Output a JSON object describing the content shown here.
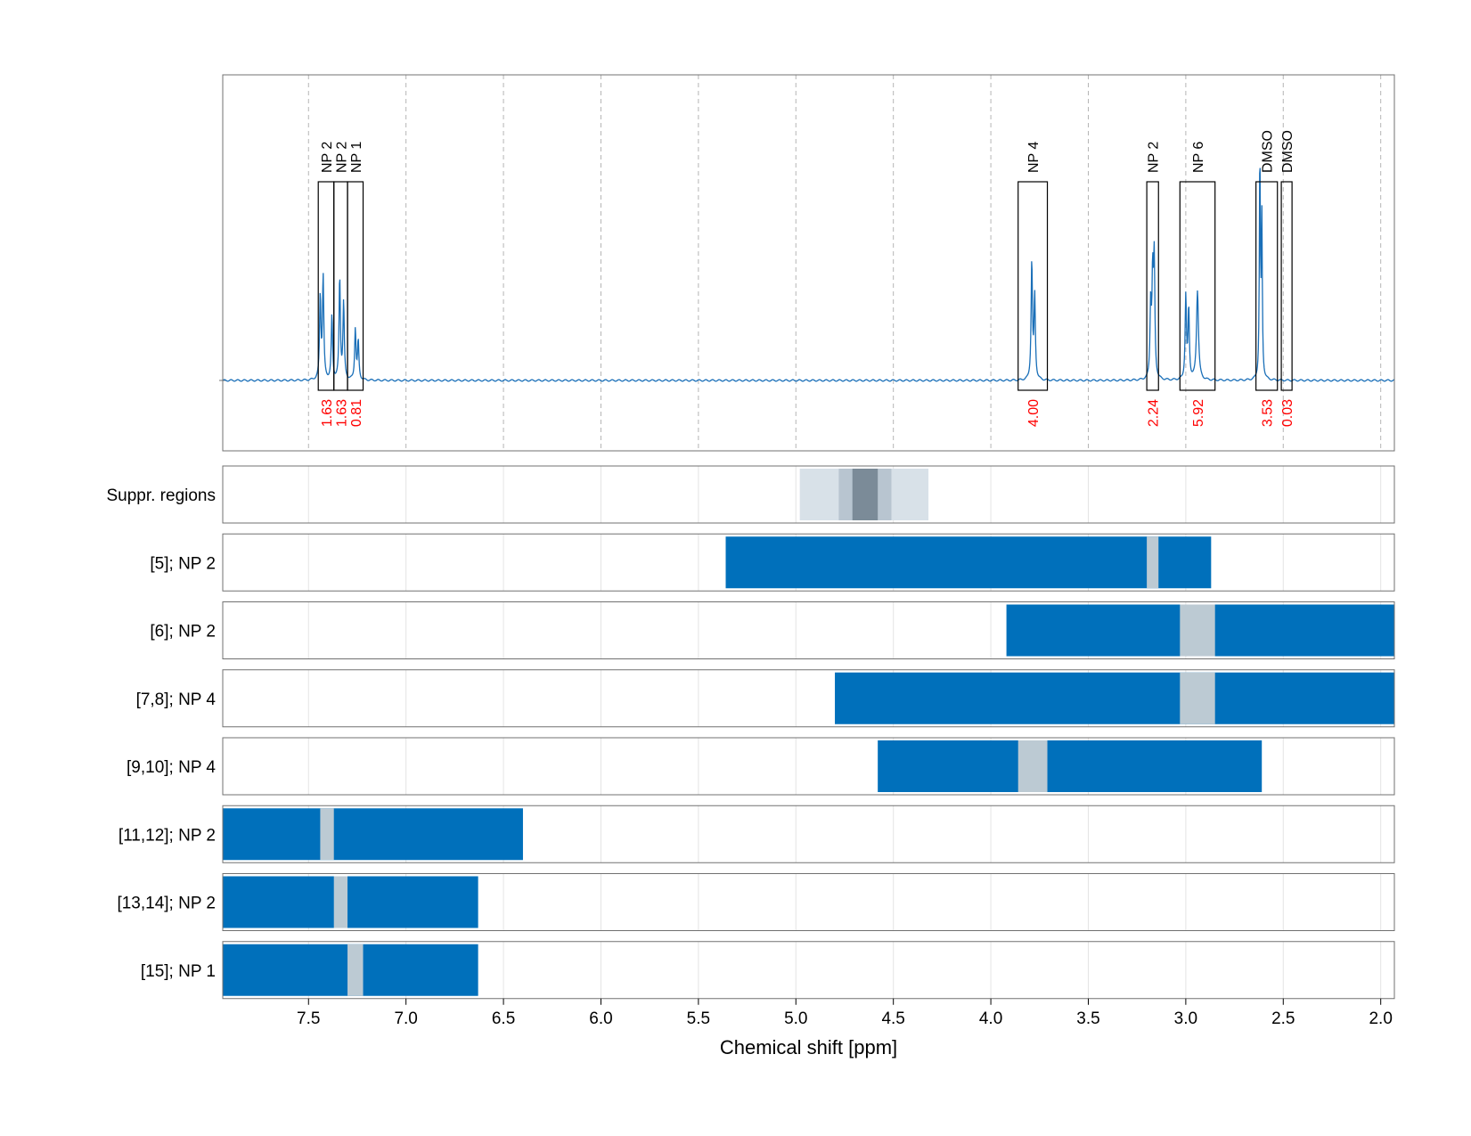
{
  "chart_data": {
    "type": "nmr-spectrum-with-integration-ranges",
    "xlabel": "Chemical shift [ppm]",
    "xlim": [
      7.94,
      1.93
    ],
    "x_ticks": [
      "7.5",
      "7.0",
      "6.5",
      "6.0",
      "5.5",
      "5.0",
      "4.5",
      "4.0",
      "3.5",
      "3.0",
      "2.5",
      "2.0"
    ],
    "x_tick_values": [
      7.5,
      7.0,
      6.5,
      6.0,
      5.5,
      5.0,
      4.5,
      4.0,
      3.5,
      3.0,
      2.5,
      2.0
    ],
    "grid": true,
    "spectrum_color": "#1a6fb8",
    "integral_label_color": "#ff0000",
    "peaks": [
      {
        "center": 7.44,
        "height": 0.26,
        "width": 0.004
      },
      {
        "center": 7.425,
        "height": 0.32,
        "width": 0.004
      },
      {
        "center": 7.38,
        "height": 0.2,
        "width": 0.004
      },
      {
        "center": 7.34,
        "height": 0.32,
        "width": 0.004
      },
      {
        "center": 7.32,
        "height": 0.24,
        "width": 0.004
      },
      {
        "center": 7.26,
        "height": 0.16,
        "width": 0.004
      },
      {
        "center": 7.245,
        "height": 0.12,
        "width": 0.004
      },
      {
        "center": 3.79,
        "height": 0.37,
        "width": 0.004
      },
      {
        "center": 3.775,
        "height": 0.26,
        "width": 0.004
      },
      {
        "center": 3.18,
        "height": 0.23,
        "width": 0.004
      },
      {
        "center": 3.17,
        "height": 0.3,
        "width": 0.004
      },
      {
        "center": 3.162,
        "height": 0.36,
        "width": 0.004
      },
      {
        "center": 3.0,
        "height": 0.26,
        "width": 0.004
      },
      {
        "center": 2.985,
        "height": 0.22,
        "width": 0.004
      },
      {
        "center": 2.94,
        "height": 0.28,
        "width": 0.006
      },
      {
        "center": 2.62,
        "height": 0.7,
        "width": 0.003
      },
      {
        "center": 2.61,
        "height": 0.5,
        "width": 0.003
      }
    ],
    "integration_regions": [
      {
        "label": "NP 2",
        "from": 7.45,
        "to": 7.37,
        "integral": "1.63"
      },
      {
        "label": "NP 2",
        "from": 7.37,
        "to": 7.3,
        "integral": "1.63"
      },
      {
        "label": "NP 1",
        "from": 7.3,
        "to": 7.22,
        "integral": "0.81"
      },
      {
        "label": "NP 4",
        "from": 3.86,
        "to": 3.71,
        "integral": "4.00"
      },
      {
        "label": "NP 2",
        "from": 3.2,
        "to": 3.14,
        "integral": "2.24"
      },
      {
        "label": "NP 6",
        "from": 3.03,
        "to": 2.85,
        "integral": "5.92"
      },
      {
        "label": "DMSO",
        "from": 2.64,
        "to": 2.53,
        "integral": "3.53"
      },
      {
        "label": "DMSO",
        "from": 2.51,
        "to": 2.455,
        "integral": "0.03"
      }
    ],
    "suppression": {
      "label": "Suppr. regions",
      "bands": [
        {
          "from": 4.98,
          "to": 4.32,
          "shade": "#d8e1e8"
        },
        {
          "from": 4.78,
          "to": 4.51,
          "shade": "#b8c5d0"
        },
        {
          "from": 4.71,
          "to": 4.58,
          "shade": "#7b8b98"
        }
      ]
    },
    "range_rows": [
      {
        "label": "[5]; NP 2",
        "from": 5.36,
        "to": 2.87,
        "excluded": [
          3.2,
          3.14
        ]
      },
      {
        "label": "[6]; NP 2",
        "from": 3.92,
        "to": 1.93,
        "excluded": [
          3.03,
          2.85
        ]
      },
      {
        "label": "[7,8]; NP 4",
        "from": 4.8,
        "to": 1.93,
        "excluded": [
          3.03,
          2.85
        ]
      },
      {
        "label": "[9,10]; NP 4",
        "from": 4.58,
        "to": 2.61,
        "excluded": [
          3.86,
          3.71
        ]
      },
      {
        "label": "[11,12]; NP 2",
        "from": 7.94,
        "to": 6.4,
        "excluded": [
          7.44,
          7.37
        ]
      },
      {
        "label": "[13,14]; NP 2",
        "from": 7.94,
        "to": 6.63,
        "excluded": [
          7.37,
          7.3
        ]
      },
      {
        "label": "[15]; NP 1",
        "from": 7.94,
        "to": 6.63,
        "excluded": [
          7.3,
          7.22
        ]
      }
    ],
    "range_color": "#0070bb",
    "excluded_color": "#bccad3"
  }
}
